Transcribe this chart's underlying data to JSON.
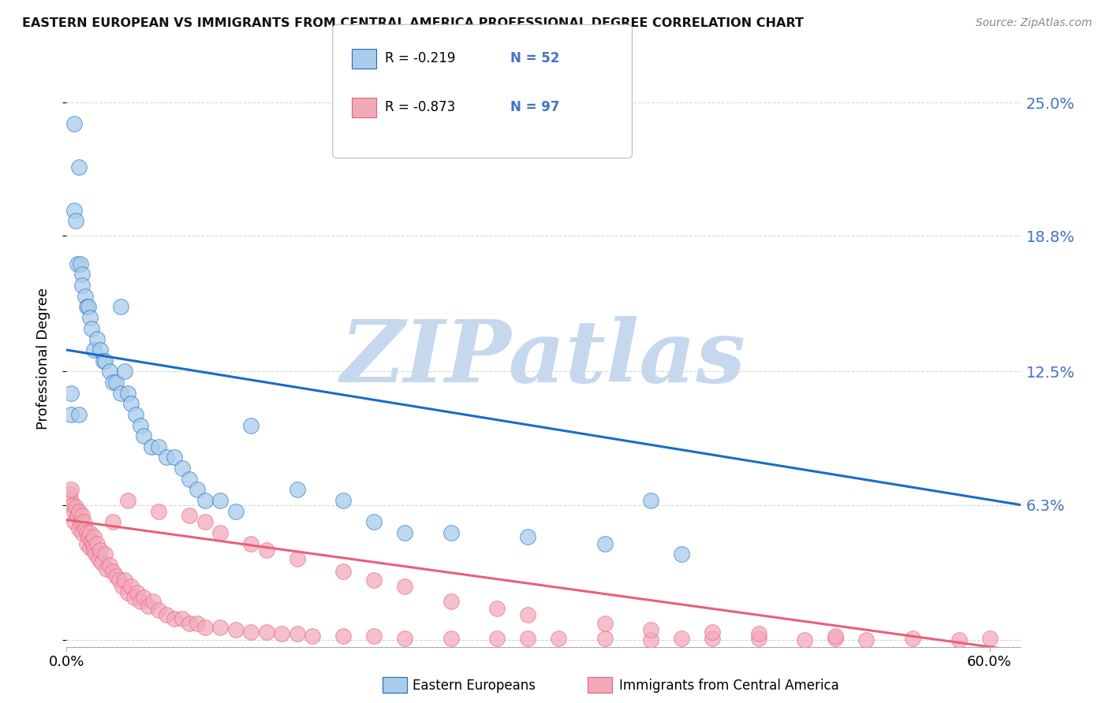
{
  "title": "EASTERN EUROPEAN VS IMMIGRANTS FROM CENTRAL AMERICA PROFESSIONAL DEGREE CORRELATION CHART",
  "source": "Source: ZipAtlas.com",
  "ylabel": "Professional Degree",
  "xlim": [
    0.0,
    0.62
  ],
  "ylim": [
    -0.003,
    0.265
  ],
  "blue_line_start_y": 0.135,
  "blue_line_end_y": 0.063,
  "pink_line_start_y": 0.056,
  "pink_line_end_y": -0.005,
  "blue_color": "#A8CCEA",
  "pink_color": "#F2AABB",
  "blue_line_color": "#1B6CC4",
  "pink_line_color": "#E8607A",
  "watermark": "ZIPatlas",
  "watermark_color": "#C5D8EE",
  "ytick_vals": [
    0.0,
    0.063,
    0.125,
    0.188,
    0.25
  ],
  "ytick_labels": [
    "",
    "6.3%",
    "12.5%",
    "18.8%",
    "25.0%"
  ],
  "xtick_vals": [
    0.0,
    0.6
  ],
  "xtick_labels": [
    "0.0%",
    "60.0%"
  ],
  "background_color": "#FFFFFF",
  "grid_color": "#CCCCCC",
  "legend_R1": "-0.219",
  "legend_N1": "52",
  "legend_R2": "-0.873",
  "legend_N2": "97",
  "blue_scatter_x": [
    0.003,
    0.003,
    0.005,
    0.006,
    0.007,
    0.008,
    0.009,
    0.01,
    0.01,
    0.012,
    0.013,
    0.014,
    0.015,
    0.016,
    0.018,
    0.02,
    0.022,
    0.024,
    0.025,
    0.028,
    0.03,
    0.032,
    0.035,
    0.038,
    0.04,
    0.042,
    0.045,
    0.048,
    0.05,
    0.055,
    0.06,
    0.065,
    0.07,
    0.075,
    0.08,
    0.085,
    0.09,
    0.1,
    0.11,
    0.12,
    0.15,
    0.18,
    0.2,
    0.22,
    0.25,
    0.3,
    0.35,
    0.38,
    0.4,
    0.005,
    0.008,
    0.035
  ],
  "blue_scatter_y": [
    0.115,
    0.105,
    0.2,
    0.195,
    0.175,
    0.105,
    0.175,
    0.17,
    0.165,
    0.16,
    0.155,
    0.155,
    0.15,
    0.145,
    0.135,
    0.14,
    0.135,
    0.13,
    0.13,
    0.125,
    0.12,
    0.12,
    0.115,
    0.125,
    0.115,
    0.11,
    0.105,
    0.1,
    0.095,
    0.09,
    0.09,
    0.085,
    0.085,
    0.08,
    0.075,
    0.07,
    0.065,
    0.065,
    0.06,
    0.1,
    0.07,
    0.065,
    0.055,
    0.05,
    0.05,
    0.048,
    0.045,
    0.065,
    0.04,
    0.24,
    0.22,
    0.155
  ],
  "pink_scatter_x": [
    0.002,
    0.003,
    0.004,
    0.005,
    0.005,
    0.006,
    0.007,
    0.008,
    0.008,
    0.009,
    0.01,
    0.01,
    0.011,
    0.012,
    0.013,
    0.013,
    0.014,
    0.015,
    0.015,
    0.016,
    0.017,
    0.018,
    0.018,
    0.019,
    0.02,
    0.021,
    0.022,
    0.023,
    0.025,
    0.026,
    0.028,
    0.03,
    0.032,
    0.034,
    0.036,
    0.038,
    0.04,
    0.042,
    0.044,
    0.046,
    0.048,
    0.05,
    0.053,
    0.056,
    0.06,
    0.065,
    0.07,
    0.075,
    0.08,
    0.085,
    0.09,
    0.1,
    0.11,
    0.12,
    0.13,
    0.14,
    0.15,
    0.16,
    0.18,
    0.2,
    0.22,
    0.25,
    0.28,
    0.3,
    0.32,
    0.35,
    0.38,
    0.4,
    0.42,
    0.45,
    0.48,
    0.5,
    0.52,
    0.55,
    0.58,
    0.6,
    0.45,
    0.5,
    0.35,
    0.38,
    0.42,
    0.3,
    0.25,
    0.28,
    0.22,
    0.2,
    0.18,
    0.15,
    0.13,
    0.12,
    0.1,
    0.09,
    0.08,
    0.06,
    0.04,
    0.03,
    0.003
  ],
  "pink_scatter_y": [
    0.068,
    0.065,
    0.063,
    0.06,
    0.055,
    0.062,
    0.058,
    0.06,
    0.052,
    0.055,
    0.058,
    0.05,
    0.055,
    0.052,
    0.05,
    0.045,
    0.048,
    0.05,
    0.043,
    0.046,
    0.044,
    0.042,
    0.048,
    0.04,
    0.045,
    0.038,
    0.042,
    0.036,
    0.04,
    0.033,
    0.035,
    0.032,
    0.03,
    0.028,
    0.025,
    0.028,
    0.022,
    0.025,
    0.02,
    0.022,
    0.018,
    0.02,
    0.016,
    0.018,
    0.014,
    0.012,
    0.01,
    0.01,
    0.008,
    0.008,
    0.006,
    0.006,
    0.005,
    0.004,
    0.004,
    0.003,
    0.003,
    0.002,
    0.002,
    0.002,
    0.001,
    0.001,
    0.001,
    0.001,
    0.001,
    0.001,
    0.0,
    0.001,
    0.001,
    0.001,
    0.0,
    0.001,
    0.0,
    0.001,
    0.0,
    0.001,
    0.003,
    0.002,
    0.008,
    0.005,
    0.004,
    0.012,
    0.018,
    0.015,
    0.025,
    0.028,
    0.032,
    0.038,
    0.042,
    0.045,
    0.05,
    0.055,
    0.058,
    0.06,
    0.065,
    0.055,
    0.07
  ]
}
